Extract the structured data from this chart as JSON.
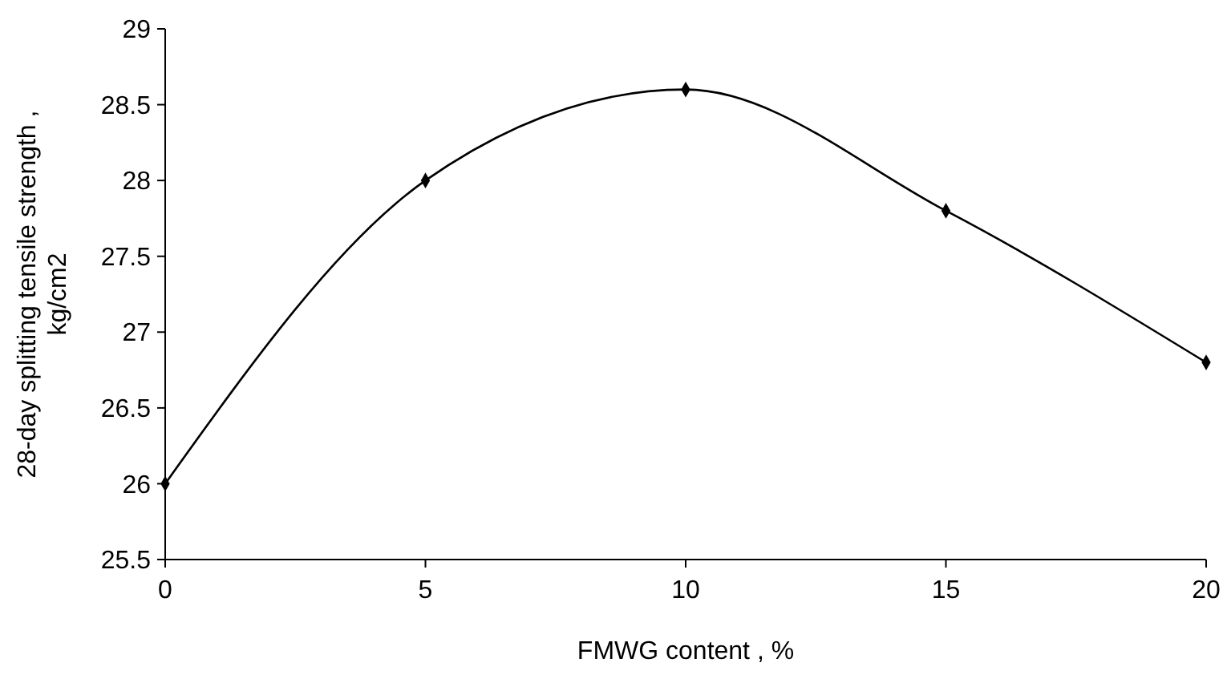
{
  "chart_data": {
    "type": "line",
    "xlabel": "FMWG content , %",
    "ylabel": "28-day splitting tensile strength ,\nkg/cm2",
    "x": [
      0,
      5,
      10,
      15,
      20
    ],
    "series": [
      {
        "color": "#000000",
        "values": [
          26,
          28,
          28.6,
          27.8,
          26.8
        ]
      }
    ],
    "xlim": [
      0,
      20
    ],
    "xticks": [
      0,
      5,
      10,
      15,
      20
    ],
    "ylim": [
      25.5,
      29
    ],
    "yticks": [
      25.5,
      26,
      26.5,
      27,
      27.5,
      28,
      28.5,
      29
    ],
    "marker": "diamond",
    "line_style": "solid",
    "grid": false
  }
}
